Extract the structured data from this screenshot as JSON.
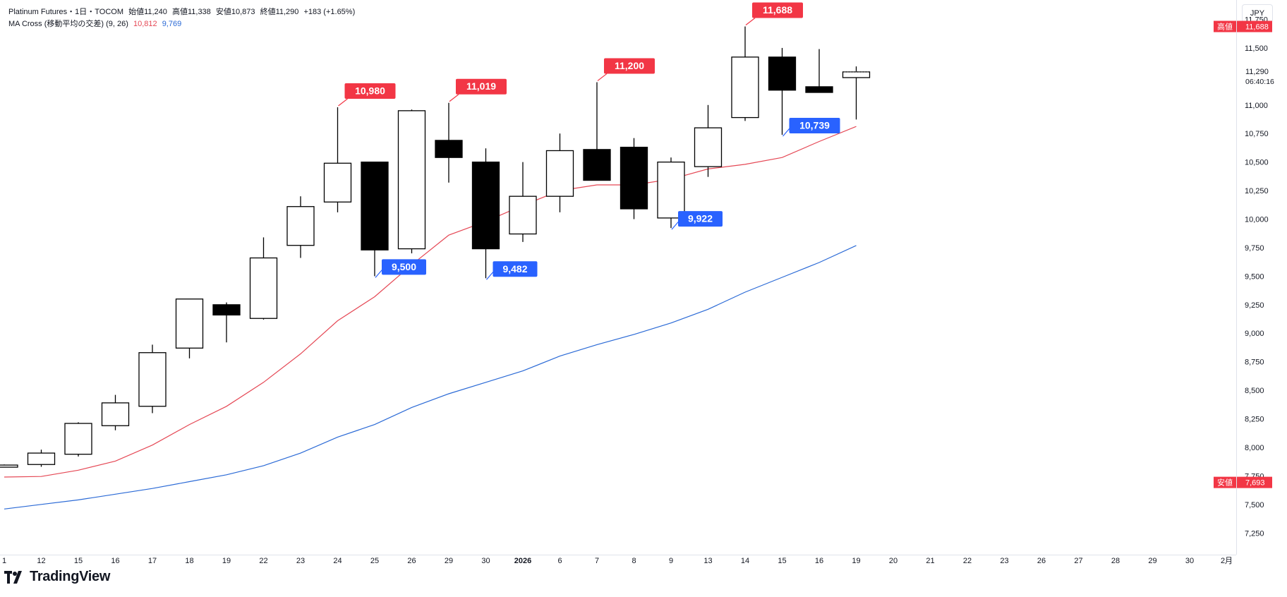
{
  "header": {
    "symbol": "Platinum Futures・1日・TOCOM",
    "open_label": "始値",
    "open": "11,240",
    "high_label": "高値",
    "high": "11,338",
    "low_label": "安値",
    "low": "10,873",
    "close_label": "終値",
    "close": "11,290",
    "change": "+183 (+1.65%)",
    "indicator": "MA Cross (移動平均の交差) (9, 26)",
    "ma_fast_value": "10,812",
    "ma_slow_value": "9,769"
  },
  "currency": "JPY",
  "brand": "TradingView",
  "colors": {
    "candle_border": "#000000",
    "up_fill": "#ffffff",
    "down_fill": "#000000",
    "ma_fast": "#e54855",
    "ma_slow": "#2b6ad6",
    "label_red": "#f23645",
    "label_blue": "#2962ff"
  },
  "chart_data": {
    "type": "candlestick",
    "yaxis": {
      "ylim": [
        7060,
        11920
      ],
      "ticks": [
        7250,
        7500,
        7750,
        8000,
        8250,
        8500,
        8750,
        9000,
        9250,
        9500,
        9750,
        10000,
        10250,
        10500,
        10750,
        11000,
        11250,
        11500,
        11750
      ],
      "tick_labels": [
        "7,250",
        "7,500",
        "7,750",
        "8,000",
        "8,250",
        "8,500",
        "8,750",
        "9,000",
        "9,250",
        "9,500",
        "9,750",
        "10,000",
        "10,250",
        "10,500",
        "10,750",
        "11,000",
        "11,250",
        "11,500",
        "11,750"
      ]
    },
    "xaxis_labels": [
      "1",
      "12",
      "15",
      "16",
      "17",
      "18",
      "19",
      "22",
      "23",
      "24",
      "25",
      "26",
      "29",
      "30",
      "2026",
      "6",
      "7",
      "8",
      "9",
      "13",
      "14",
      "15",
      "16",
      "19",
      "20",
      "21",
      "22",
      "23",
      "26",
      "27",
      "28",
      "29",
      "30",
      "2月"
    ],
    "candles": [
      {
        "o": 7840,
        "h": 7850,
        "l": 7830,
        "c": 7845
      },
      {
        "o": 7850,
        "h": 7980,
        "l": 7830,
        "c": 7950
      },
      {
        "o": 7940,
        "h": 8220,
        "l": 7920,
        "c": 8210
      },
      {
        "o": 8190,
        "h": 8460,
        "l": 8150,
        "c": 8390
      },
      {
        "o": 8360,
        "h": 8900,
        "l": 8300,
        "c": 8830
      },
      {
        "o": 8870,
        "h": 9300,
        "l": 8780,
        "c": 9300
      },
      {
        "o": 9250,
        "h": 9270,
        "l": 8920,
        "c": 9160
      },
      {
        "o": 9130,
        "h": 9840,
        "l": 9120,
        "c": 9660
      },
      {
        "o": 9770,
        "h": 10200,
        "l": 9660,
        "c": 10110
      },
      {
        "o": 10150,
        "h": 10980,
        "l": 10060,
        "c": 10490
      },
      {
        "o": 10500,
        "h": 10500,
        "l": 9500,
        "c": 9730
      },
      {
        "o": 9740,
        "h": 10960,
        "l": 9700,
        "c": 10950
      },
      {
        "o": 10690,
        "h": 11019,
        "l": 10320,
        "c": 10540
      },
      {
        "o": 10500,
        "h": 10620,
        "l": 9482,
        "c": 9740
      },
      {
        "o": 9870,
        "h": 10500,
        "l": 9800,
        "c": 10200
      },
      {
        "o": 10200,
        "h": 10750,
        "l": 10060,
        "c": 10600
      },
      {
        "o": 10610,
        "h": 11200,
        "l": 10340,
        "c": 10340
      },
      {
        "o": 10630,
        "h": 10710,
        "l": 10000,
        "c": 10090
      },
      {
        "o": 10010,
        "h": 10540,
        "l": 9922,
        "c": 10500
      },
      {
        "o": 10460,
        "h": 11000,
        "l": 10370,
        "c": 10800
      },
      {
        "o": 10890,
        "h": 11688,
        "l": 10860,
        "c": 11420
      },
      {
        "o": 11420,
        "h": 11500,
        "l": 10739,
        "c": 11130
      },
      {
        "o": 11160,
        "h": 11490,
        "l": 11120,
        "c": 11110
      },
      {
        "o": 11240,
        "h": 11338,
        "l": 10873,
        "c": 11290
      }
    ],
    "ma_fast": [
      7740,
      7745,
      7800,
      7880,
      8020,
      8200,
      8360,
      8570,
      8820,
      9110,
      9320,
      9600,
      9860,
      9980,
      10120,
      10250,
      10300,
      10300,
      10350,
      10440,
      10480,
      10540,
      10680,
      10812
    ],
    "ma_slow": [
      7460,
      7500,
      7540,
      7590,
      7640,
      7700,
      7760,
      7840,
      7950,
      8090,
      8200,
      8350,
      8470,
      8570,
      8670,
      8800,
      8900,
      8990,
      9090,
      9210,
      9360,
      9490,
      9620,
      9769
    ],
    "high_annotations": [
      {
        "index": 9,
        "label": "10,980"
      },
      {
        "index": 12,
        "label": "11,019"
      },
      {
        "index": 16,
        "label": "11,200"
      },
      {
        "index": 20,
        "label": "11,688"
      }
    ],
    "low_annotations": [
      {
        "index": 10,
        "label": "9,500"
      },
      {
        "index": 13,
        "label": "9,482"
      },
      {
        "index": 18,
        "label": "9,922"
      },
      {
        "index": 21,
        "label": "10,739"
      }
    ],
    "price_markers": [
      {
        "label": "高値",
        "value_label": "11,688",
        "value": 11688,
        "color": "#f23645"
      },
      {
        "label": "安値",
        "value_label": "7,693",
        "value": 7693,
        "color": "#f23645"
      }
    ],
    "last_price": {
      "value": 11290,
      "label": "11,290",
      "countdown": "06:40:16"
    }
  }
}
